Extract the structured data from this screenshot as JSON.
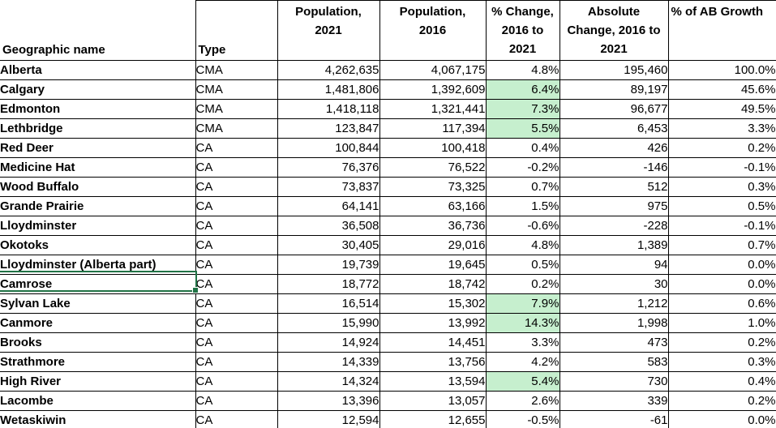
{
  "colors": {
    "grid_border": "#000000",
    "highlight_bg": "#c6efce",
    "highlight_text": "#006100",
    "selection_border": "#217346",
    "text": "#000000",
    "background": "#ffffff"
  },
  "selection": {
    "selected_row": "Camrose",
    "selected_column": "Geographic name"
  },
  "table": {
    "columns": [
      {
        "key": "name",
        "label": "Geographic name"
      },
      {
        "key": "type",
        "label": "Type"
      },
      {
        "key": "pop2021",
        "label": "Population,\n2021"
      },
      {
        "key": "pop2016",
        "label": "Population,\n2016"
      },
      {
        "key": "pct_change",
        "label": "% Change,\n2016 to\n2021"
      },
      {
        "key": "abs_change",
        "label": "Absolute\nChange, 2016 to\n2021"
      },
      {
        "key": "pct_ab_growth",
        "label": "%  of AB Growth"
      }
    ],
    "rows": [
      {
        "name": "Alberta",
        "type": "CMA",
        "pop2021": "4,262,635",
        "pop2016": "4,067,175",
        "pct_change": "4.8%",
        "abs_change": "195,460",
        "pct_ab_growth": "100.0%",
        "highlight": false
      },
      {
        "name": "Calgary",
        "type": "CMA",
        "pop2021": "1,481,806",
        "pop2016": "1,392,609",
        "pct_change": "6.4%",
        "abs_change": "89,197",
        "pct_ab_growth": "45.6%",
        "highlight": true
      },
      {
        "name": "Edmonton",
        "type": "CMA",
        "pop2021": "1,418,118",
        "pop2016": "1,321,441",
        "pct_change": "7.3%",
        "abs_change": "96,677",
        "pct_ab_growth": "49.5%",
        "highlight": true
      },
      {
        "name": "Lethbridge",
        "type": "CMA",
        "pop2021": "123,847",
        "pop2016": "117,394",
        "pct_change": "5.5%",
        "abs_change": "6,453",
        "pct_ab_growth": "3.3%",
        "highlight": true
      },
      {
        "name": "Red Deer",
        "type": "CA",
        "pop2021": "100,844",
        "pop2016": "100,418",
        "pct_change": "0.4%",
        "abs_change": "426",
        "pct_ab_growth": "0.2%",
        "highlight": false
      },
      {
        "name": "Medicine Hat",
        "type": "CA",
        "pop2021": "76,376",
        "pop2016": "76,522",
        "pct_change": "-0.2%",
        "abs_change": "-146",
        "pct_ab_growth": "-0.1%",
        "highlight": false
      },
      {
        "name": "Wood Buffalo",
        "type": "CA",
        "pop2021": "73,837",
        "pop2016": "73,325",
        "pct_change": "0.7%",
        "abs_change": "512",
        "pct_ab_growth": "0.3%",
        "highlight": false
      },
      {
        "name": "Grande Prairie",
        "type": "CA",
        "pop2021": "64,141",
        "pop2016": "63,166",
        "pct_change": "1.5%",
        "abs_change": "975",
        "pct_ab_growth": "0.5%",
        "highlight": false
      },
      {
        "name": "Lloydminster",
        "type": "CA",
        "pop2021": "36,508",
        "pop2016": "36,736",
        "pct_change": "-0.6%",
        "abs_change": "-228",
        "pct_ab_growth": "-0.1%",
        "highlight": false
      },
      {
        "name": "Okotoks",
        "type": "CA",
        "pop2021": "30,405",
        "pop2016": "29,016",
        "pct_change": "4.8%",
        "abs_change": "1,389",
        "pct_ab_growth": "0.7%",
        "highlight": false
      },
      {
        "name": "Lloydminster (Alberta part)",
        "type": "CA",
        "pop2021": "19,739",
        "pop2016": "19,645",
        "pct_change": "0.5%",
        "abs_change": "94",
        "pct_ab_growth": "0.0%",
        "highlight": false
      },
      {
        "name": "Camrose",
        "type": "CA",
        "pop2021": "18,772",
        "pop2016": "18,742",
        "pct_change": "0.2%",
        "abs_change": "30",
        "pct_ab_growth": "0.0%",
        "highlight": false
      },
      {
        "name": "Sylvan Lake",
        "type": "CA",
        "pop2021": "16,514",
        "pop2016": "15,302",
        "pct_change": "7.9%",
        "abs_change": "1,212",
        "pct_ab_growth": "0.6%",
        "highlight": true
      },
      {
        "name": "Canmore",
        "type": "CA",
        "pop2021": "15,990",
        "pop2016": "13,992",
        "pct_change": "14.3%",
        "abs_change": "1,998",
        "pct_ab_growth": "1.0%",
        "highlight": true
      },
      {
        "name": "Brooks",
        "type": "CA",
        "pop2021": "14,924",
        "pop2016": "14,451",
        "pct_change": "3.3%",
        "abs_change": "473",
        "pct_ab_growth": "0.2%",
        "highlight": false
      },
      {
        "name": "Strathmore",
        "type": "CA",
        "pop2021": "14,339",
        "pop2016": "13,756",
        "pct_change": "4.2%",
        "abs_change": "583",
        "pct_ab_growth": "0.3%",
        "highlight": false
      },
      {
        "name": "High River",
        "type": "CA",
        "pop2021": "14,324",
        "pop2016": "13,594",
        "pct_change": "5.4%",
        "abs_change": "730",
        "pct_ab_growth": "0.4%",
        "highlight": true
      },
      {
        "name": "Lacombe",
        "type": "CA",
        "pop2021": "13,396",
        "pop2016": "13,057",
        "pct_change": "2.6%",
        "abs_change": "339",
        "pct_ab_growth": "0.2%",
        "highlight": false
      },
      {
        "name": "Wetaskiwin",
        "type": "CA",
        "pop2021": "12,594",
        "pop2016": "12,655",
        "pct_change": "-0.5%",
        "abs_change": "-61",
        "pct_ab_growth": "0.0%",
        "highlight": false
      }
    ]
  }
}
